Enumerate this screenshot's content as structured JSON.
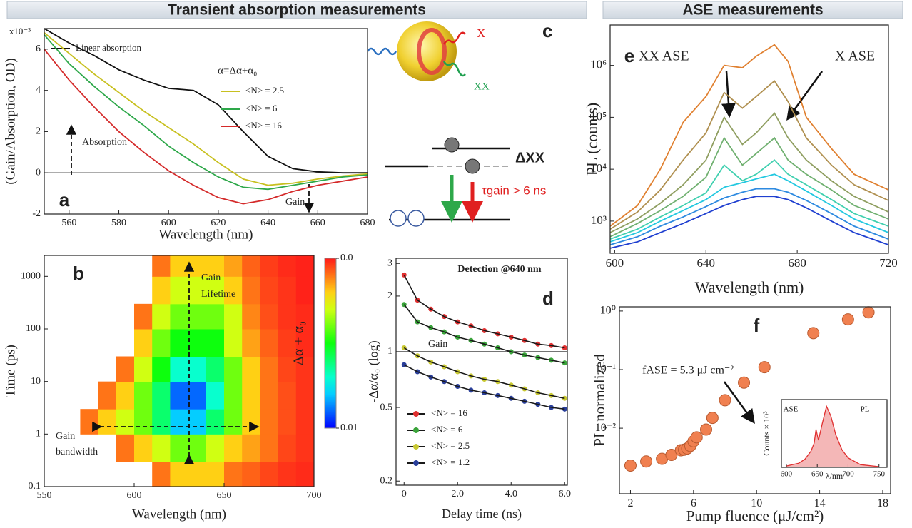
{
  "headers": [
    "Transient absorption measurements",
    "ASE measurements"
  ],
  "panel_c": {
    "label": "c",
    "exciton": "X",
    "biexciton": "XX",
    "energy": "ΔXX",
    "lifetime": "τgain > 6 ns"
  },
  "chart_data": [
    {
      "type": "line",
      "panel": "a",
      "xlabel": "Wavelength (nm)",
      "ylabel": "(Gain/Absorption, OD)",
      "y_multiplier": "x10⁻³",
      "legend_title": "α=Δα+α₀",
      "annotations": [
        "Absorption",
        "Gain"
      ],
      "hline": 0,
      "x": [
        550,
        560,
        570,
        580,
        590,
        600,
        610,
        620,
        630,
        640,
        650,
        660,
        670,
        680
      ],
      "series": [
        {
          "name": "Linear absorption",
          "color": "#111111",
          "values": [
            7,
            6.3,
            5.7,
            5.0,
            4.5,
            4.1,
            4.0,
            3.3,
            2.0,
            0.8,
            0.2,
            0.05,
            0,
            0
          ]
        },
        {
          "name": "<N> = 2.5",
          "color": "#c8c020",
          "values": [
            6.8,
            5.8,
            4.8,
            3.9,
            3.0,
            2.2,
            1.4,
            0.5,
            -0.3,
            -0.6,
            -0.5,
            -0.3,
            -0.15,
            -0.05
          ]
        },
        {
          "name": "<N> = 6",
          "color": "#2ea84a",
          "values": [
            6.7,
            5.3,
            4.2,
            3.2,
            2.3,
            1.3,
            0.5,
            -0.2,
            -0.7,
            -0.8,
            -0.6,
            -0.4,
            -0.2,
            -0.1
          ]
        },
        {
          "name": "<N> = 16",
          "color": "#d42a2a",
          "values": [
            6.0,
            4.5,
            3.2,
            2.0,
            1.0,
            0.1,
            -0.6,
            -1.2,
            -1.5,
            -1.3,
            -0.9,
            -0.6,
            -0.4,
            -0.2
          ]
        }
      ],
      "xlim": [
        550,
        680
      ],
      "xticks": [
        560,
        580,
        600,
        620,
        640,
        660,
        680
      ],
      "ylim": [
        -2,
        7
      ],
      "yticks": [
        -2,
        0,
        2,
        4,
        6
      ]
    },
    {
      "type": "heatmap",
      "panel": "b",
      "xlabel": "Wavelength (nm)",
      "ylabel": "Time (ps)",
      "ylog": true,
      "annotations": [
        "Gain",
        "Lifetime",
        "Gain",
        "bandwidth"
      ],
      "x_bins": [
        570,
        580,
        590,
        600,
        610,
        620,
        630,
        640,
        650,
        660,
        670,
        680,
        690,
        700
      ],
      "y_bins": [
        0.1,
        0.3,
        1,
        3,
        10,
        30,
        100,
        300,
        1000,
        2500
      ],
      "z": [
        [
          null,
          null,
          null,
          null,
          0.001,
          0.002,
          0.002,
          0.002,
          0.001,
          0.0008,
          0.0005,
          0.0003,
          0.0002
        ],
        [
          null,
          null,
          0.001,
          0.002,
          0.003,
          0.004,
          0.004,
          0.003,
          0.002,
          0.0015,
          0.001,
          0.0005,
          0.0003
        ],
        [
          0.001,
          0.002,
          0.003,
          0.004,
          0.006,
          0.008,
          0.008,
          0.006,
          0.004,
          0.002,
          0.001,
          0.0006,
          0.0003
        ],
        [
          null,
          0.001,
          0.002,
          0.004,
          0.006,
          0.009,
          0.009,
          0.007,
          0.004,
          0.002,
          0.001,
          0.0006,
          0.0003
        ],
        [
          null,
          null,
          0.001,
          0.003,
          0.005,
          0.007,
          0.007,
          0.006,
          0.004,
          0.002,
          0.001,
          0.0005,
          0.0003
        ],
        [
          null,
          null,
          null,
          0.002,
          0.004,
          0.005,
          0.005,
          0.005,
          0.003,
          0.0015,
          0.0008,
          0.0004,
          0.0002
        ],
        [
          null,
          null,
          null,
          0.001,
          0.003,
          0.004,
          0.004,
          0.004,
          0.003,
          0.0012,
          0.0006,
          0.0003,
          0.0002
        ],
        [
          null,
          null,
          null,
          null,
          0.002,
          0.003,
          0.003,
          0.003,
          0.002,
          0.001,
          0.0005,
          0.0003,
          0.0001
        ],
        [
          null,
          null,
          null,
          null,
          0.001,
          0.002,
          0.002,
          0.002,
          0.0015,
          0.0008,
          0.0004,
          0.0002,
          0.0001
        ]
      ],
      "colorbar": {
        "label": "Δα + α₀",
        "lim": [
          0.01,
          0
        ],
        "ticks": [
          {
            "value": 0,
            "label": "0.0"
          },
          0.01
        ]
      },
      "xlim": [
        550,
        700
      ],
      "xticks": [
        550,
        600,
        650,
        700
      ],
      "ylim": [
        0.1,
        2500
      ],
      "yticks": [
        0.1,
        1,
        10,
        100,
        1000
      ]
    },
    {
      "type": "line",
      "panel": "d",
      "title": "Detection @640 nm",
      "xlabel": "Delay time (ns)",
      "ylabel": "-Δα/α₀ (log)",
      "ylog": true,
      "markers": true,
      "fit_color": "#1a1a1a",
      "hline": 1,
      "hline_label": "Gain",
      "x": [
        0,
        0.5,
        1,
        1.5,
        2,
        2.5,
        3,
        3.5,
        4,
        4.5,
        5,
        5.5,
        6
      ],
      "series": [
        {
          "name": "<N> = 16",
          "color": "#e03030",
          "values": [
            2.6,
            1.9,
            1.7,
            1.55,
            1.45,
            1.38,
            1.3,
            1.25,
            1.2,
            1.15,
            1.1,
            1.08,
            1.05
          ]
        },
        {
          "name": "<N> = 6",
          "color": "#3aa33a",
          "values": [
            1.8,
            1.45,
            1.35,
            1.28,
            1.2,
            1.15,
            1.1,
            1.05,
            1.0,
            0.96,
            0.93,
            0.9,
            0.87
          ]
        },
        {
          "name": "<N> = 2.5",
          "color": "#c8c832",
          "values": [
            1.05,
            0.95,
            0.88,
            0.83,
            0.78,
            0.74,
            0.71,
            0.69,
            0.66,
            0.63,
            0.6,
            0.58,
            0.56
          ]
        },
        {
          "name": "<N> = 1.2",
          "color": "#2a3f9a",
          "values": [
            0.85,
            0.78,
            0.73,
            0.69,
            0.65,
            0.62,
            0.6,
            0.58,
            0.56,
            0.54,
            0.52,
            0.5,
            0.49
          ]
        }
      ],
      "xlim": [
        -0.3,
        6.1
      ],
      "xticks": [
        0,
        {
          "value": 2,
          "label": "2.0"
        },
        {
          "value": 4,
          "label": "4.0"
        },
        {
          "value": 6,
          "label": "6.0"
        }
      ],
      "ylim": [
        0.19,
        3.2
      ],
      "yticks": [
        0.2,
        0.5,
        1,
        2,
        3
      ]
    },
    {
      "type": "line",
      "panel": "e",
      "xlabel": "Wavelength (nm)",
      "ylabel": "PL (counts)",
      "ylog": true,
      "annotations": [
        "XX ASE",
        "X ASE"
      ],
      "x": [
        598,
        610,
        620,
        630,
        640,
        648,
        656,
        662,
        670,
        676,
        684,
        695,
        705,
        720
      ],
      "series": [
        {
          "color": "#1f3fd0",
          "values": [
            300,
            400,
            600,
            900,
            1400,
            2000,
            2600,
            3000,
            3000,
            2600,
            1800,
            1000,
            600,
            350
          ]
        },
        {
          "color": "#2d8ae0",
          "values": [
            350,
            500,
            800,
            1200,
            1900,
            2800,
            3600,
            4200,
            4200,
            3600,
            2500,
            1400,
            800,
            450
          ]
        },
        {
          "color": "#22c8e0",
          "values": [
            400,
            600,
            1000,
            1600,
            2600,
            4500,
            5500,
            6500,
            8000,
            6000,
            3800,
            2000,
            1100,
            600
          ]
        },
        {
          "color": "#40d0b0",
          "values": [
            450,
            700,
            1200,
            2000,
            3500,
            12000,
            6000,
            8000,
            15000,
            8000,
            5000,
            2600,
            1400,
            800
          ]
        },
        {
          "color": "#70b070",
          "values": [
            500,
            900,
            1600,
            3000,
            7000,
            40000,
            12000,
            20000,
            40000,
            15000,
            8000,
            4000,
            2000,
            1100
          ]
        },
        {
          "color": "#8f9e60",
          "values": [
            600,
            1100,
            2200,
            5000,
            15000,
            100000,
            30000,
            50000,
            120000,
            40000,
            15000,
            6000,
            3000,
            1500
          ]
        },
        {
          "color": "#b09050",
          "values": [
            700,
            1500,
            4000,
            15000,
            50000,
            300000,
            150000,
            250000,
            500000,
            200000,
            40000,
            12000,
            5000,
            2500
          ]
        },
        {
          "color": "#e08030",
          "values": [
            800,
            2000,
            10000,
            80000,
            250000,
            1000000,
            900000,
            1500000,
            2500000,
            1200000,
            100000,
            25000,
            8000,
            4000
          ]
        }
      ],
      "xlim": [
        598,
        720
      ],
      "xticks": [
        600,
        640,
        680,
        720
      ],
      "ylim": [
        240,
        6000000
      ],
      "yticks": [
        {
          "value": 1000,
          "label": "10³"
        },
        {
          "value": 10000,
          "label": "10⁴"
        },
        {
          "value": 100000,
          "label": "10⁵"
        },
        {
          "value": 1000000,
          "label": "10⁶"
        }
      ]
    },
    {
      "type": "scatter",
      "panel": "f",
      "xlabel": "Pump fluence (μJ/cm²)",
      "ylabel": "PL, normalized",
      "ylog": true,
      "annotations": [
        "fASE = 5.3 μJ cm⁻²"
      ],
      "color": "#f08050",
      "x": [
        2,
        3,
        4,
        4.6,
        5.2,
        5.4,
        5.6,
        5.8,
        6.0,
        6.2,
        6.8,
        7.2,
        8,
        9.2,
        10.5,
        13.6,
        15.8,
        17.1
      ],
      "values": [
        0.0023,
        0.0027,
        0.003,
        0.0035,
        0.0042,
        0.0043,
        0.0045,
        0.005,
        0.006,
        0.007,
        0.0095,
        0.015,
        0.03,
        0.06,
        0.11,
        0.42,
        0.72,
        0.95
      ],
      "xlim": [
        1.3,
        18.5
      ],
      "xticks": [
        2,
        6,
        10,
        14,
        18
      ],
      "ylim": [
        0.00076,
        1.18
      ],
      "yticks": [
        {
          "value": 0.01,
          "label": "10⁻²"
        },
        {
          "value": 0.1,
          "label": "10⁻¹"
        },
        {
          "value": 1,
          "label": "10⁰"
        }
      ],
      "inset": {
        "type": "area",
        "xlabel": "λ/nm",
        "ylabel": "Counts × 10³",
        "annotations": [
          "ASE",
          "PL"
        ],
        "color": "#e03030",
        "x": [
          600,
          620,
          630,
          640,
          645,
          648,
          652,
          658,
          665,
          672,
          680,
          690,
          700,
          720,
          750
        ],
        "values": [
          0.1,
          0.3,
          0.6,
          1.2,
          1.8,
          2.8,
          2.0,
          3.2,
          4.5,
          3.8,
          2.4,
          1.3,
          0.7,
          0.2,
          0.05
        ],
        "xlim": [
          592,
          763
        ],
        "xticks": [
          600,
          650,
          700,
          750
        ],
        "ylim": [
          0,
          5
        ]
      }
    }
  ]
}
